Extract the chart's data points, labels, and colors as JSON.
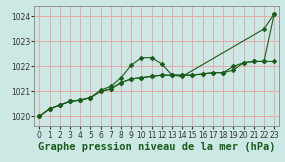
{
  "title": "Graphe pression niveau de la mer (hPa)",
  "bg_color": "#cce8e4",
  "grid_color": "#e8aaaa",
  "line_color": "#1a5c1a",
  "xlim": [
    -0.5,
    23.5
  ],
  "ylim": [
    1019.6,
    1024.4
  ],
  "yticks": [
    1020,
    1021,
    1022,
    1023,
    1024
  ],
  "xticks": [
    0,
    1,
    2,
    3,
    4,
    5,
    6,
    7,
    8,
    9,
    10,
    11,
    12,
    13,
    14,
    15,
    16,
    17,
    18,
    19,
    20,
    21,
    22,
    23
  ],
  "line1_x": [
    0,
    1,
    2,
    3,
    4,
    5,
    6,
    7,
    8,
    9,
    10,
    11,
    12,
    13,
    14,
    22,
    23
  ],
  "line1_y": [
    1020.0,
    1020.3,
    1020.45,
    1020.6,
    1020.65,
    1020.75,
    1021.05,
    1021.2,
    1021.55,
    1022.05,
    1022.35,
    1022.35,
    1022.1,
    1021.65,
    1021.6,
    1023.5,
    1024.1
  ],
  "line2_x": [
    0,
    1,
    2,
    3,
    4,
    5,
    6,
    7,
    8,
    9,
    10,
    11,
    12,
    13,
    14,
    15,
    16,
    17,
    18,
    19,
    20,
    21,
    22,
    23
  ],
  "line2_y": [
    1020.0,
    1020.3,
    1020.45,
    1020.6,
    1020.65,
    1020.75,
    1021.0,
    1021.1,
    1021.35,
    1021.5,
    1021.55,
    1021.6,
    1021.65,
    1021.65,
    1021.65,
    1021.65,
    1021.7,
    1021.75,
    1021.75,
    1021.85,
    1022.15,
    1022.2,
    1022.2,
    1022.2
  ],
  "line3_x": [
    0,
    1,
    2,
    3,
    4,
    5,
    6,
    7,
    8,
    9,
    10,
    11,
    12,
    13,
    14,
    15,
    16,
    17,
    18,
    19,
    20,
    21,
    22,
    23
  ],
  "line3_y": [
    1020.0,
    1020.3,
    1020.45,
    1020.6,
    1020.65,
    1020.75,
    1021.0,
    1021.1,
    1021.35,
    1021.5,
    1021.55,
    1021.6,
    1021.65,
    1021.65,
    1021.65,
    1021.65,
    1021.7,
    1021.75,
    1021.75,
    1022.0,
    1022.15,
    1022.2,
    1022.2,
    1024.1
  ],
  "title_fontsize": 7.5,
  "tick_fontsize": 5.5
}
